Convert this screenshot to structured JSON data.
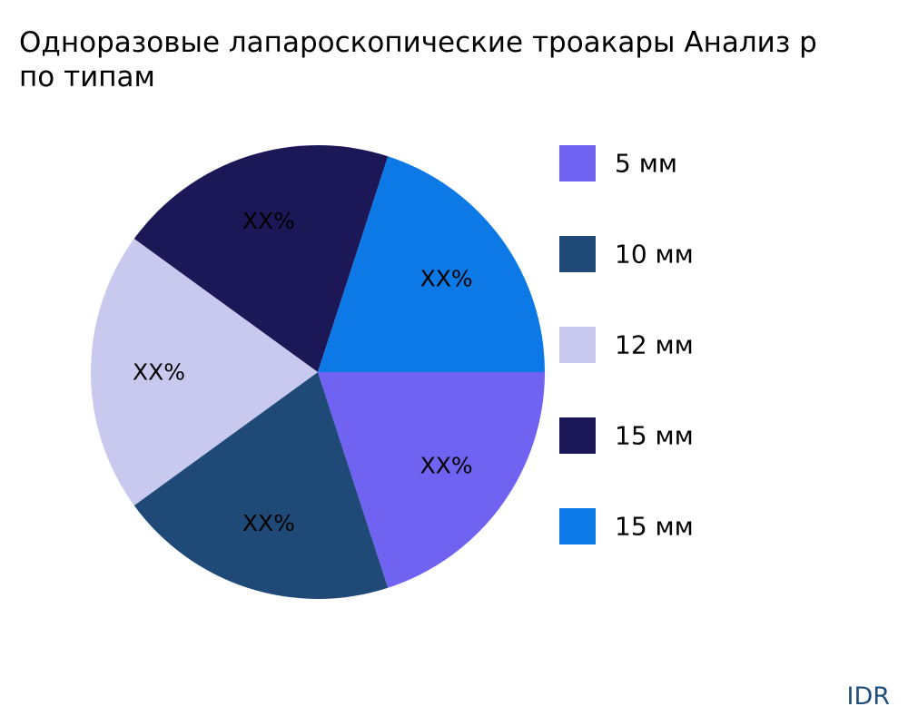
{
  "chart_data": {
    "type": "pie",
    "title_lines": [
      "Одноразовые лапароскопические троакары Анализ р",
      "по типам"
    ],
    "slices": [
      {
        "label": "5 мм",
        "value": 20,
        "value_label": "XX%",
        "color": "#7063f2"
      },
      {
        "label": "10 мм",
        "value": 20,
        "value_label": "XX%",
        "color": "#1f4a78"
      },
      {
        "label": "12 мм",
        "value": 20,
        "value_label": "XX%",
        "color": "#c9c8ef"
      },
      {
        "label": "15 мм",
        "value": 20,
        "value_label": "XX%",
        "color": "#1c1757"
      },
      {
        "label": "15 мм",
        "value": 20,
        "value_label": "XX%",
        "color": "#0c79e6"
      }
    ],
    "start_direction": "east",
    "direction": "clockwise",
    "legend_position": "right"
  },
  "brand": "IDR"
}
